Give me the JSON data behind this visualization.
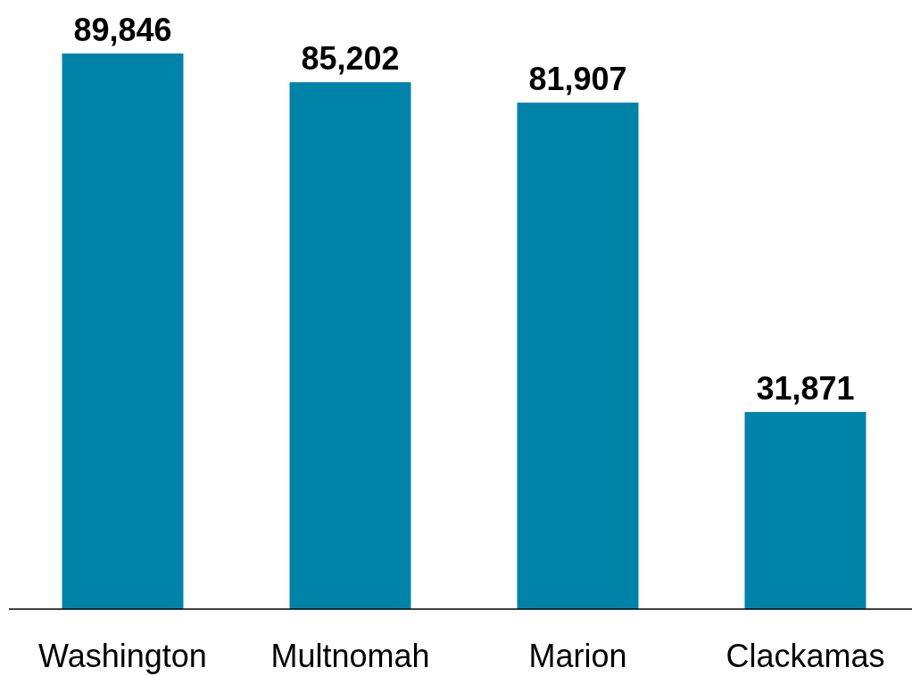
{
  "chart_data": {
    "type": "bar",
    "categories": [
      "Washington",
      "Multnomah",
      "Marion",
      "Clackamas"
    ],
    "values": [
      89846,
      85202,
      81907,
      31871
    ],
    "value_labels": [
      "89,846",
      "85,202",
      "81,907",
      "31,871"
    ],
    "color": "#0083a9"
  }
}
